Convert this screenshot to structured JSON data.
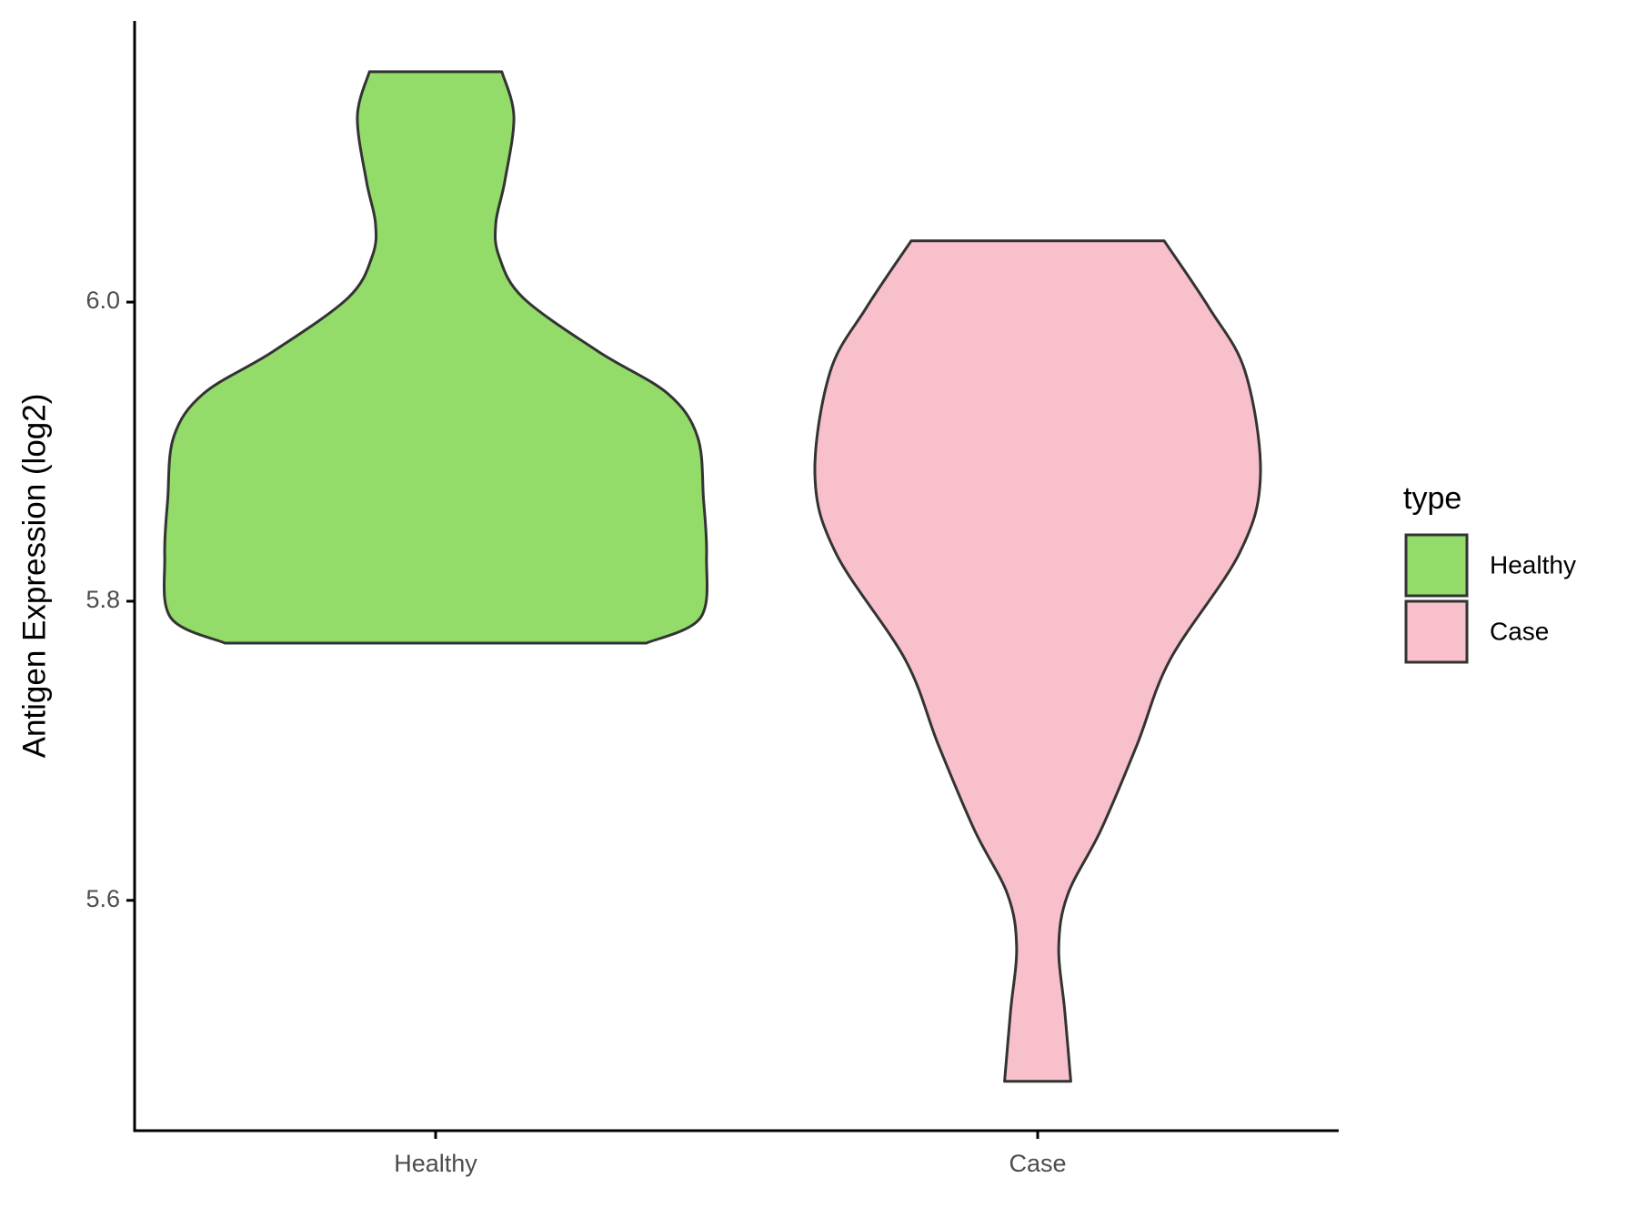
{
  "chart_data": {
    "type": "violin",
    "y_label": "Antigen Expression (log2)",
    "categories": [
      "Healthy",
      "Case"
    ],
    "series": [
      {
        "name": "Healthy",
        "color": "#93dc6a",
        "y": [
          5.772,
          5.789,
          5.83,
          5.868,
          5.91,
          5.939,
          5.967,
          6.003,
          6.031,
          6.053,
          6.081,
          6.124,
          6.154
        ],
        "width": [
          0.7,
          0.88,
          0.9,
          0.89,
          0.87,
          0.77,
          0.54,
          0.29,
          0.21,
          0.2,
          0.23,
          0.26,
          0.22
        ]
      },
      {
        "name": "Case",
        "color": "#f7c0cb",
        "y": [
          5.479,
          5.526,
          5.569,
          5.604,
          5.647,
          5.704,
          5.761,
          5.832,
          5.884,
          5.953,
          5.996,
          6.041
        ],
        "width": [
          0.11,
          0.09,
          0.07,
          0.1,
          0.21,
          0.33,
          0.44,
          0.67,
          0.74,
          0.69,
          0.57,
          0.42
        ]
      }
    ],
    "ylim": [
      5.446,
      6.188
    ],
    "yticks": [
      {
        "value": 5.6,
        "label": "5.6"
      },
      {
        "value": 5.8,
        "label": "5.8"
      },
      {
        "value": 6.0,
        "label": "6.0"
      }
    ],
    "legend_title": "type",
    "legend_position": "right",
    "outline_color": "#333333"
  }
}
